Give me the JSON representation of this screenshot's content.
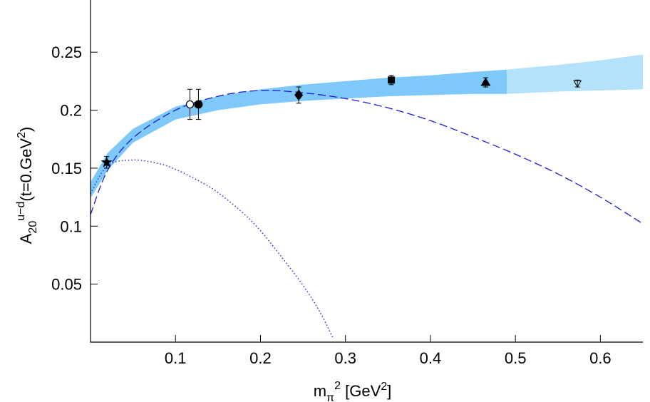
{
  "chart_data": {
    "type": "scatter",
    "title": "",
    "xlabel": {
      "base": "m",
      "sub": "π",
      "sup": "2",
      "rest": " [GeV",
      "rest_sup": "2",
      "close": "]"
    },
    "ylabel": {
      "base": "A",
      "sub": "20",
      "sup": "u−d",
      "rest": "(t=0.GeV",
      "rest_sup": "2",
      "close": ")"
    },
    "xlim": [
      0.0,
      0.65
    ],
    "ylim": [
      0.0,
      0.295
    ],
    "x_ticks": [
      {
        "value": 0.1,
        "label": "0.1"
      },
      {
        "value": 0.2,
        "label": "0.2"
      },
      {
        "value": 0.3,
        "label": "0.3"
      },
      {
        "value": 0.4,
        "label": "0.4"
      },
      {
        "value": 0.5,
        "label": "0.5"
      },
      {
        "value": 0.6,
        "label": "0.6"
      }
    ],
    "y_ticks": [
      {
        "value": 0.05,
        "label": "0.05"
      },
      {
        "value": 0.1,
        "label": "0.1"
      },
      {
        "value": 0.15,
        "label": "0.15"
      },
      {
        "value": 0.2,
        "label": "0.2"
      },
      {
        "value": 0.25,
        "label": "0.25"
      }
    ],
    "band": {
      "color_dark": "#7ec8fa",
      "color_light": "#b4e1fb",
      "split_x": 0.49,
      "points": [
        {
          "x": 0.0,
          "lo": 0.124,
          "hi": 0.138
        },
        {
          "x": 0.02,
          "lo": 0.148,
          "hi": 0.163
        },
        {
          "x": 0.05,
          "lo": 0.172,
          "hi": 0.184
        },
        {
          "x": 0.1,
          "lo": 0.192,
          "hi": 0.203
        },
        {
          "x": 0.15,
          "lo": 0.2,
          "hi": 0.212
        },
        {
          "x": 0.2,
          "lo": 0.205,
          "hi": 0.218
        },
        {
          "x": 0.25,
          "lo": 0.208,
          "hi": 0.222
        },
        {
          "x": 0.3,
          "lo": 0.21,
          "hi": 0.225
        },
        {
          "x": 0.35,
          "lo": 0.212,
          "hi": 0.228
        },
        {
          "x": 0.4,
          "lo": 0.213,
          "hi": 0.23
        },
        {
          "x": 0.45,
          "lo": 0.214,
          "hi": 0.233
        },
        {
          "x": 0.49,
          "lo": 0.214,
          "hi": 0.235
        },
        {
          "x": 0.55,
          "lo": 0.216,
          "hi": 0.239
        },
        {
          "x": 0.6,
          "lo": 0.217,
          "hi": 0.243
        },
        {
          "x": 0.65,
          "lo": 0.218,
          "hi": 0.248
        }
      ]
    },
    "series": [
      {
        "style": "dashed",
        "color": "#1a1adb",
        "points": [
          {
            "x": 0.0,
            "y": 0.11
          },
          {
            "x": 0.02,
            "y": 0.148
          },
          {
            "x": 0.05,
            "y": 0.176
          },
          {
            "x": 0.1,
            "y": 0.2
          },
          {
            "x": 0.15,
            "y": 0.212
          },
          {
            "x": 0.2,
            "y": 0.217
          },
          {
            "x": 0.25,
            "y": 0.215
          },
          {
            "x": 0.3,
            "y": 0.21
          },
          {
            "x": 0.35,
            "y": 0.202
          },
          {
            "x": 0.4,
            "y": 0.191
          },
          {
            "x": 0.45,
            "y": 0.177
          },
          {
            "x": 0.5,
            "y": 0.162
          },
          {
            "x": 0.55,
            "y": 0.145
          },
          {
            "x": 0.6,
            "y": 0.125
          },
          {
            "x": 0.65,
            "y": 0.102
          }
        ]
      },
      {
        "style": "dotted",
        "color": "#3a3ad0",
        "points": [
          {
            "x": 0.0,
            "y": 0.128
          },
          {
            "x": 0.02,
            "y": 0.152
          },
          {
            "x": 0.05,
            "y": 0.157
          },
          {
            "x": 0.08,
            "y": 0.154
          },
          {
            "x": 0.1,
            "y": 0.149
          },
          {
            "x": 0.13,
            "y": 0.138
          },
          {
            "x": 0.15,
            "y": 0.129
          },
          {
            "x": 0.18,
            "y": 0.111
          },
          {
            "x": 0.2,
            "y": 0.096
          },
          {
            "x": 0.22,
            "y": 0.078
          },
          {
            "x": 0.25,
            "y": 0.049
          },
          {
            "x": 0.27,
            "y": 0.026
          },
          {
            "x": 0.285,
            "y": 0.004
          }
        ]
      }
    ],
    "data_points": [
      {
        "marker": "star",
        "x": 0.019,
        "y": 0.155,
        "err": 0.005
      },
      {
        "marker": "circle-open",
        "x": 0.117,
        "y": 0.205,
        "err": 0.013
      },
      {
        "marker": "circle",
        "x": 0.127,
        "y": 0.205,
        "err": 0.013
      },
      {
        "marker": "diamond",
        "x": 0.245,
        "y": 0.213,
        "err": 0.007
      },
      {
        "marker": "square",
        "x": 0.354,
        "y": 0.226,
        "err": 0.004
      },
      {
        "marker": "triangle",
        "x": 0.465,
        "y": 0.224,
        "err": 0.004
      },
      {
        "marker": "triangle-down-open",
        "x": 0.573,
        "y": 0.223,
        "err": 0.003
      }
    ],
    "grid": false,
    "legend": "none"
  }
}
